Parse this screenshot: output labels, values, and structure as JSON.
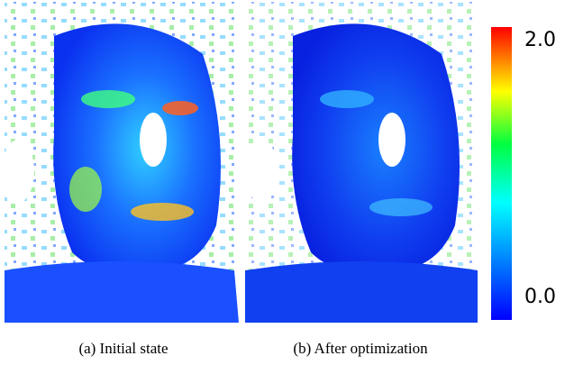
{
  "panels": [
    {
      "caption": "(a) Initial state"
    },
    {
      "caption": "(b) After optimization"
    }
  ],
  "colorbar": {
    "range": [
      0,
      2
    ],
    "ticks": [
      {
        "value": 2,
        "label": "2.0"
      },
      {
        "value": 0,
        "label": "0.0"
      }
    ]
  }
}
